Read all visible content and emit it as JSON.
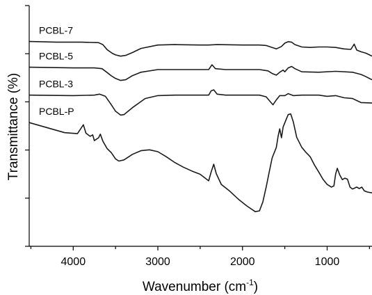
{
  "chart_data": {
    "type": "line",
    "title": "",
    "xlabel": "Wavenumber (cm",
    "xlabel_sup": "-1",
    "xlabel_close": ")",
    "ylabel": "Transmittance (%)",
    "x_reversed": true,
    "xlim": [
      4520,
      470
    ],
    "xticks": [
      4000,
      3000,
      2000,
      1000
    ],
    "ylim": [
      0,
      100
    ],
    "y_tick_labels_shown": false,
    "series": [
      {
        "name": "PCBL-7",
        "points": [
          [
            4520,
            85.1
          ],
          [
            4200,
            84.8
          ],
          [
            3900,
            84.8
          ],
          [
            3700,
            84.6
          ],
          [
            3650,
            83.8
          ],
          [
            3600,
            81.7
          ],
          [
            3540,
            80.2
          ],
          [
            3500,
            79.5
          ],
          [
            3440,
            79.0
          ],
          [
            3380,
            79.3
          ],
          [
            3300,
            80.5
          ],
          [
            3200,
            82.2
          ],
          [
            3000,
            83.6
          ],
          [
            2800,
            83.8
          ],
          [
            2500,
            83.6
          ],
          [
            2400,
            83.6
          ],
          [
            2300,
            83.8
          ],
          [
            2000,
            83.6
          ],
          [
            1800,
            83.6
          ],
          [
            1720,
            83.4
          ],
          [
            1650,
            82.6
          ],
          [
            1600,
            82.0
          ],
          [
            1540,
            83.0
          ],
          [
            1500,
            84.4
          ],
          [
            1460,
            85.0
          ],
          [
            1420,
            84.8
          ],
          [
            1380,
            83.8
          ],
          [
            1300,
            82.8
          ],
          [
            1200,
            82.6
          ],
          [
            1100,
            82.8
          ],
          [
            1000,
            82.8
          ],
          [
            900,
            82.6
          ],
          [
            800,
            82.0
          ],
          [
            720,
            81.8
          ],
          [
            680,
            84.0
          ],
          [
            650,
            81.5
          ],
          [
            600,
            80.8
          ],
          [
            540,
            80.2
          ],
          [
            470,
            79.0
          ]
        ]
      },
      {
        "name": "PCBL-5",
        "points": [
          [
            4520,
            74.4
          ],
          [
            4000,
            74.1
          ],
          [
            3750,
            74.1
          ],
          [
            3660,
            73.8
          ],
          [
            3600,
            72.2
          ],
          [
            3550,
            70.8
          ],
          [
            3500,
            69.7
          ],
          [
            3440,
            68.9
          ],
          [
            3380,
            69.2
          ],
          [
            3300,
            70.9
          ],
          [
            3200,
            72.3
          ],
          [
            3000,
            73.4
          ],
          [
            2800,
            73.4
          ],
          [
            2500,
            73.4
          ],
          [
            2400,
            73.4
          ],
          [
            2360,
            75.4
          ],
          [
            2320,
            73.8
          ],
          [
            2200,
            73.4
          ],
          [
            2000,
            73.4
          ],
          [
            1800,
            73.4
          ],
          [
            1700,
            72.9
          ],
          [
            1650,
            71.8
          ],
          [
            1600,
            71.1
          ],
          [
            1560,
            72.3
          ],
          [
            1520,
            73.2
          ],
          [
            1500,
            72.5
          ],
          [
            1460,
            74.1
          ],
          [
            1420,
            74.7
          ],
          [
            1380,
            73.8
          ],
          [
            1300,
            72.5
          ],
          [
            1100,
            72.3
          ],
          [
            900,
            72.7
          ],
          [
            700,
            72.3
          ],
          [
            600,
            71.4
          ],
          [
            550,
            70.6
          ],
          [
            470,
            69.2
          ]
        ]
      },
      {
        "name": "PCBL-3",
        "points": [
          [
            4520,
            62.8
          ],
          [
            4000,
            62.6
          ],
          [
            3750,
            62.8
          ],
          [
            3690,
            63.2
          ],
          [
            3620,
            62.3
          ],
          [
            3560,
            59.3
          ],
          [
            3500,
            56.1
          ],
          [
            3440,
            54.5
          ],
          [
            3400,
            54.7
          ],
          [
            3300,
            57.6
          ],
          [
            3150,
            61.4
          ],
          [
            3000,
            62.6
          ],
          [
            2800,
            62.8
          ],
          [
            2500,
            62.8
          ],
          [
            2400,
            62.8
          ],
          [
            2370,
            64.6
          ],
          [
            2340,
            65.0
          ],
          [
            2300,
            63.2
          ],
          [
            2200,
            62.8
          ],
          [
            2000,
            62.8
          ],
          [
            1800,
            62.8
          ],
          [
            1720,
            62.1
          ],
          [
            1680,
            60.4
          ],
          [
            1640,
            58.8
          ],
          [
            1600,
            60.8
          ],
          [
            1560,
            62.6
          ],
          [
            1500,
            62.6
          ],
          [
            1460,
            63.4
          ],
          [
            1400,
            62.6
          ],
          [
            1300,
            62.8
          ],
          [
            1100,
            62.8
          ],
          [
            1000,
            62.3
          ],
          [
            900,
            62.6
          ],
          [
            800,
            61.7
          ],
          [
            700,
            61.4
          ],
          [
            600,
            59.7
          ],
          [
            470,
            59.5
          ]
        ]
      },
      {
        "name": "PCBL-P",
        "points": [
          [
            4520,
            51.4
          ],
          [
            4300,
            49.2
          ],
          [
            4100,
            47.2
          ],
          [
            3950,
            46.8
          ],
          [
            3880,
            50.5
          ],
          [
            3850,
            47.0
          ],
          [
            3800,
            45.7
          ],
          [
            3770,
            46.3
          ],
          [
            3750,
            43.9
          ],
          [
            3700,
            45.1
          ],
          [
            3680,
            46.6
          ],
          [
            3650,
            43.7
          ],
          [
            3600,
            40.6
          ],
          [
            3550,
            38.9
          ],
          [
            3500,
            36.3
          ],
          [
            3460,
            35.4
          ],
          [
            3400,
            35.9
          ],
          [
            3300,
            38.2
          ],
          [
            3200,
            39.7
          ],
          [
            3100,
            40.1
          ],
          [
            3000,
            39.3
          ],
          [
            2900,
            37.2
          ],
          [
            2800,
            34.8
          ],
          [
            2700,
            32.9
          ],
          [
            2600,
            31.3
          ],
          [
            2500,
            29.9
          ],
          [
            2440,
            28.3
          ],
          [
            2400,
            27.2
          ],
          [
            2370,
            30.9
          ],
          [
            2340,
            34.1
          ],
          [
            2310,
            30.2
          ],
          [
            2250,
            25.7
          ],
          [
            2150,
            22.9
          ],
          [
            2050,
            19.6
          ],
          [
            1950,
            16.8
          ],
          [
            1850,
            14.4
          ],
          [
            1800,
            14.7
          ],
          [
            1760,
            18.4
          ],
          [
            1720,
            24.6
          ],
          [
            1680,
            31.6
          ],
          [
            1650,
            36.7
          ],
          [
            1600,
            41.1
          ],
          [
            1580,
            45.6
          ],
          [
            1560,
            48.8
          ],
          [
            1540,
            45.1
          ],
          [
            1520,
            49.6
          ],
          [
            1480,
            53.1
          ],
          [
            1460,
            54.7
          ],
          [
            1430,
            55.0
          ],
          [
            1400,
            51.7
          ],
          [
            1360,
            45.3
          ],
          [
            1300,
            41.1
          ],
          [
            1250,
            39.0
          ],
          [
            1200,
            37.2
          ],
          [
            1150,
            33.8
          ],
          [
            1100,
            30.9
          ],
          [
            1050,
            27.9
          ],
          [
            1000,
            25.7
          ],
          [
            950,
            24.6
          ],
          [
            920,
            25.1
          ],
          [
            900,
            30.0
          ],
          [
            880,
            32.4
          ],
          [
            850,
            29.6
          ],
          [
            820,
            27.7
          ],
          [
            790,
            28.3
          ],
          [
            760,
            27.9
          ],
          [
            730,
            24.6
          ],
          [
            700,
            23.8
          ],
          [
            650,
            24.6
          ],
          [
            620,
            24.0
          ],
          [
            590,
            24.6
          ],
          [
            560,
            23.0
          ],
          [
            520,
            22.5
          ],
          [
            470,
            22.2
          ]
        ]
      }
    ]
  }
}
